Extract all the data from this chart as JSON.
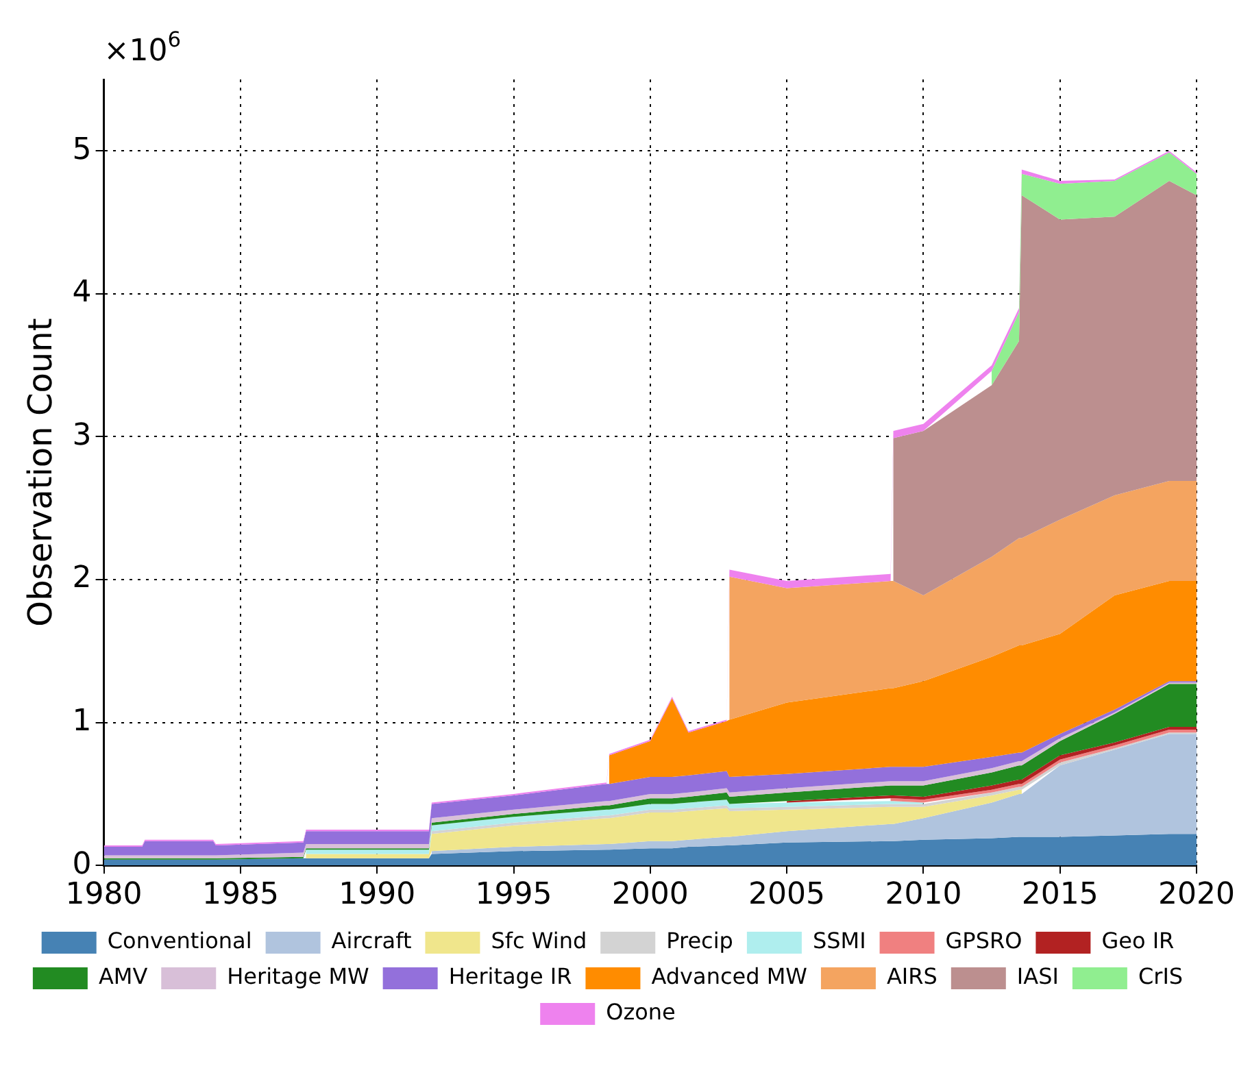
{
  "chart_data": {
    "type": "area",
    "stacked": true,
    "ylabel": "Observation Count",
    "annotations": [
      "×10$^{6}$"
    ],
    "x": [
      1980,
      1981.4,
      1981.5,
      1984,
      1984.1,
      1987.3,
      1987.4,
      1991.9,
      1992,
      1995,
      1998.4,
      1998.5,
      2000,
      2000.8,
      2001.4,
      2002.8,
      2002.9,
      2005,
      2008.8,
      2008.9,
      2010,
      2012.5,
      2013.5,
      2013.6,
      2015,
      2017,
      2019,
      2020
    ],
    "series": [
      {
        "name": "Conventional",
        "color": "#4682b4",
        "values": [
          0.04,
          0.04,
          0.04,
          0.04,
          0.04,
          0.05,
          0.05,
          0.05,
          0.08,
          0.1,
          0.11,
          0.11,
          0.12,
          0.12,
          0.13,
          0.14,
          0.14,
          0.16,
          0.17,
          0.17,
          0.18,
          0.19,
          0.2,
          0.2,
          0.2,
          0.21,
          0.22,
          0.22
        ]
      },
      {
        "name": "Aircraft",
        "color": "#b0c4de",
        "values": [
          null,
          null,
          null,
          null,
          null,
          null,
          null,
          null,
          0.02,
          0.03,
          0.04,
          0.04,
          0.05,
          0.05,
          0.05,
          0.06,
          0.06,
          0.08,
          0.12,
          0.12,
          0.15,
          0.25,
          0.3,
          0.3,
          0.5,
          0.6,
          0.7,
          0.7
        ]
      },
      {
        "name": "Sfc Wind",
        "color": "#f0e68c",
        "values": [
          null,
          null,
          null,
          null,
          null,
          null,
          0.03,
          0.03,
          0.12,
          0.15,
          0.18,
          0.18,
          0.2,
          0.2,
          0.2,
          0.2,
          0.18,
          0.15,
          0.12,
          0.12,
          0.08,
          0.05,
          0.03,
          0.03,
          null,
          null,
          null,
          null
        ]
      },
      {
        "name": "Precip",
        "color": "#d3d3d3",
        "values": [
          null,
          null,
          null,
          null,
          null,
          null,
          null,
          null,
          0.02,
          0.02,
          0.02,
          0.02,
          0.02,
          0.02,
          0.02,
          0.02,
          0.02,
          0.02,
          0.02,
          0.02,
          0.02,
          0.02,
          0.02,
          0.02,
          0.02,
          0.01,
          0.01,
          0.01
        ]
      },
      {
        "name": "SSMI",
        "color": "#afeeee",
        "values": [
          null,
          null,
          null,
          null,
          null,
          null,
          0.03,
          0.03,
          0.04,
          0.04,
          0.04,
          0.04,
          0.04,
          0.04,
          0.04,
          0.04,
          0.03,
          0.03,
          0.02,
          0.02,
          0.01,
          null,
          null,
          null,
          null,
          null,
          null,
          null
        ]
      },
      {
        "name": "GPSRO",
        "color": "#f08080",
        "values": [
          null,
          null,
          null,
          null,
          null,
          null,
          null,
          null,
          null,
          null,
          null,
          null,
          null,
          null,
          null,
          null,
          null,
          null,
          0.02,
          0.02,
          0.02,
          0.02,
          0.02,
          0.02,
          0.02,
          0.02,
          0.02,
          0.02
        ]
      },
      {
        "name": "Geo IR",
        "color": "#b22222",
        "values": [
          null,
          null,
          null,
          null,
          null,
          null,
          null,
          null,
          null,
          null,
          null,
          null,
          null,
          null,
          null,
          null,
          null,
          0.01,
          0.02,
          0.02,
          0.02,
          0.03,
          0.03,
          0.03,
          0.03,
          0.02,
          0.02,
          0.02
        ]
      },
      {
        "name": "AMV",
        "color": "#228b22",
        "values": [
          0.01,
          0.01,
          0.01,
          0.01,
          0.01,
          0.01,
          0.01,
          0.01,
          0.02,
          0.02,
          0.03,
          0.03,
          0.04,
          0.04,
          0.04,
          0.05,
          0.05,
          0.06,
          0.07,
          0.07,
          0.08,
          0.09,
          0.1,
          0.1,
          0.1,
          0.2,
          0.3,
          0.3
        ]
      },
      {
        "name": "Heritage MW",
        "color": "#d8bfd8",
        "values": [
          0.02,
          0.02,
          0.02,
          0.02,
          0.02,
          0.03,
          0.03,
          0.03,
          0.03,
          0.03,
          0.03,
          0.03,
          0.03,
          0.03,
          0.03,
          0.03,
          0.03,
          0.03,
          0.03,
          0.03,
          0.03,
          0.03,
          0.03,
          0.03,
          0.02,
          0.01,
          0.01,
          0.01
        ]
      },
      {
        "name": "Heritage IR",
        "color": "#9370db",
        "values": [
          0.06,
          0.06,
          0.1,
          0.1,
          0.07,
          0.07,
          0.09,
          0.09,
          0.1,
          0.1,
          0.12,
          0.12,
          0.12,
          0.12,
          0.12,
          0.12,
          0.11,
          0.1,
          0.1,
          0.1,
          0.1,
          0.08,
          0.06,
          0.06,
          0.03,
          0.02,
          0.01,
          0.01
        ]
      },
      {
        "name": "Advanced MW",
        "color": "#ff8c00",
        "values": [
          null,
          null,
          null,
          null,
          null,
          null,
          null,
          null,
          null,
          null,
          null,
          0.2,
          0.25,
          0.55,
          0.3,
          0.35,
          0.4,
          0.5,
          0.55,
          0.55,
          0.6,
          0.7,
          0.75,
          0.75,
          0.7,
          0.8,
          0.7,
          0.7
        ]
      },
      {
        "name": "AIRS",
        "color": "#f4a460",
        "values": [
          null,
          null,
          null,
          null,
          null,
          null,
          null,
          null,
          null,
          null,
          null,
          null,
          null,
          null,
          null,
          null,
          1.0,
          0.8,
          0.75,
          0.75,
          0.6,
          0.7,
          0.75,
          0.75,
          0.8,
          0.7,
          0.7,
          0.7
        ]
      },
      {
        "name": "IASI",
        "color": "#bc8f8f",
        "values": [
          null,
          null,
          null,
          null,
          null,
          null,
          null,
          null,
          null,
          null,
          null,
          null,
          null,
          null,
          null,
          null,
          null,
          null,
          null,
          1.0,
          1.15,
          1.2,
          1.38,
          2.4,
          2.1,
          1.95,
          2.1,
          2.0
        ]
      },
      {
        "name": "CrIS",
        "color": "#90ee90",
        "values": [
          null,
          null,
          null,
          null,
          null,
          null,
          null,
          null,
          null,
          null,
          null,
          null,
          null,
          null,
          null,
          null,
          null,
          null,
          null,
          null,
          null,
          0.1,
          0.2,
          0.15,
          0.25,
          0.25,
          0.2,
          0.15
        ]
      },
      {
        "name": "Ozone",
        "color": "#ee82ee",
        "values": [
          0.01,
          0.01,
          0.01,
          0.01,
          0.01,
          0.01,
          0.01,
          0.01,
          0.01,
          0.01,
          0.01,
          0.01,
          0.01,
          0.01,
          0.01,
          0.01,
          0.05,
          0.05,
          0.05,
          0.05,
          0.05,
          0.04,
          0.03,
          0.03,
          0.02,
          0.01,
          0.01,
          0.01
        ]
      }
    ],
    "xlim": [
      1980,
      2020
    ],
    "xticks": [
      1980,
      1985,
      1990,
      1995,
      2000,
      2005,
      2010,
      2015,
      2020
    ],
    "ylim": [
      0,
      5.5
    ],
    "yticks": [
      0,
      1,
      2,
      3,
      4,
      5
    ],
    "grid": true,
    "legend": "bottom"
  }
}
